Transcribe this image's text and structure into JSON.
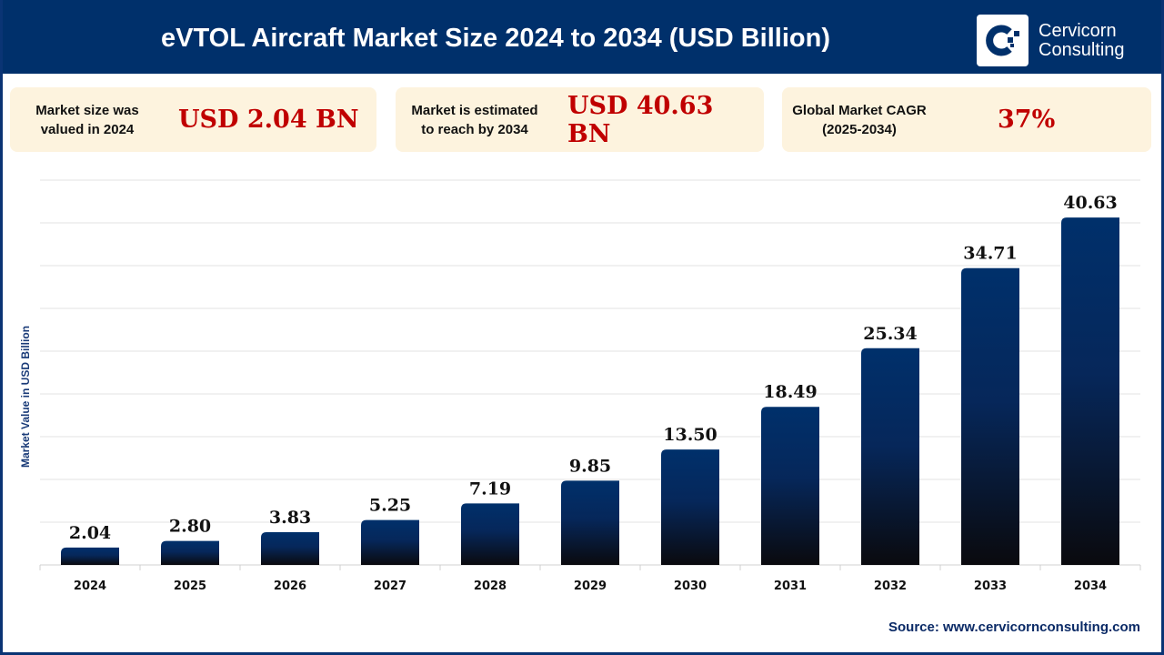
{
  "header": {
    "title": "eVTOL Aircraft Market Size 2024 to 2034 (USD Billion)",
    "logo_line1": "Cervicorn",
    "logo_line2": "Consulting"
  },
  "cards": [
    {
      "label_line1": "Market size was",
      "label_line2": "valued in 2024",
      "value": "USD 2.04 BN"
    },
    {
      "label_line1": "Market is estimated",
      "label_line2": "to reach by 2034",
      "value": "USD 40.63 BN"
    },
    {
      "label_line1": "Global Market CAGR",
      "label_line2": "(2025-2034)",
      "value": "37%"
    }
  ],
  "source": "Source: www.cervicornconsulting.com",
  "colors": {
    "header": "#00306b",
    "bar_top": "#00306b",
    "bar_bottom": "#0a0a0e",
    "value_text": "#c00000",
    "card_bg": "#fdf3de"
  },
  "chart_data": {
    "type": "bar",
    "categories": [
      "2024",
      "2025",
      "2026",
      "2027",
      "2028",
      "2029",
      "2030",
      "2031",
      "2032",
      "2033",
      "2034"
    ],
    "values": [
      2.04,
      2.8,
      3.83,
      5.25,
      7.19,
      9.85,
      13.5,
      18.49,
      25.34,
      34.71,
      40.63
    ],
    "data_labels": [
      "2.04",
      "2.80",
      "3.83",
      "5.25",
      "7.19",
      "9.85",
      "13.50",
      "18.49",
      "25.34",
      "34.71",
      "40.63"
    ],
    "ylabel": "Market Value in USD Billion",
    "ylim": [
      0,
      45
    ],
    "grid": true,
    "y_ticks_shown": false
  }
}
